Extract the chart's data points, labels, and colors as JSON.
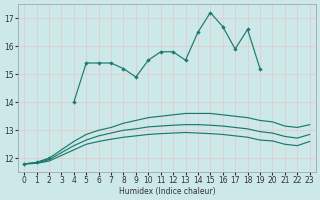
{
  "x": [
    0,
    1,
    2,
    3,
    4,
    5,
    6,
    7,
    8,
    9,
    10,
    11,
    12,
    13,
    14,
    15,
    16,
    17,
    18,
    19,
    20,
    21,
    22,
    23
  ],
  "y_zigzag": [
    11.8,
    11.85,
    12.0,
    null,
    14.0,
    15.4,
    15.4,
    15.4,
    15.2,
    14.9,
    15.5,
    15.8,
    15.8,
    15.5,
    16.5,
    17.2,
    16.7,
    15.9,
    16.6,
    15.2,
    null,
    null,
    null,
    null
  ],
  "y_upper": [
    11.8,
    11.85,
    12.0,
    12.3,
    12.6,
    12.85,
    13.0,
    13.1,
    13.25,
    13.35,
    13.45,
    13.5,
    13.55,
    13.6,
    13.6,
    13.6,
    13.55,
    13.5,
    13.45,
    13.35,
    13.3,
    13.15,
    13.1,
    13.2
  ],
  "y_mid": [
    11.8,
    11.82,
    11.95,
    12.2,
    12.45,
    12.65,
    12.8,
    12.9,
    13.0,
    13.05,
    13.12,
    13.15,
    13.18,
    13.2,
    13.2,
    13.18,
    13.15,
    13.1,
    13.05,
    12.95,
    12.9,
    12.78,
    12.72,
    12.85
  ],
  "y_bot": [
    11.8,
    11.82,
    11.9,
    12.1,
    12.3,
    12.5,
    12.6,
    12.68,
    12.75,
    12.8,
    12.85,
    12.88,
    12.9,
    12.92,
    12.9,
    12.88,
    12.85,
    12.8,
    12.75,
    12.65,
    12.62,
    12.5,
    12.45,
    12.6
  ],
  "xlabel": "Humidex (Indice chaleur)",
  "ylim": [
    11.5,
    17.5
  ],
  "xlim": [
    -0.5,
    23.5
  ],
  "yticks": [
    12,
    13,
    14,
    15,
    16,
    17
  ],
  "xticks": [
    0,
    1,
    2,
    3,
    4,
    5,
    6,
    7,
    8,
    9,
    10,
    11,
    12,
    13,
    14,
    15,
    16,
    17,
    18,
    19,
    20,
    21,
    22,
    23
  ],
  "color": "#1a7a6e",
  "bg_color": "#cce8e8",
  "grid_color": "#e0d0d0"
}
